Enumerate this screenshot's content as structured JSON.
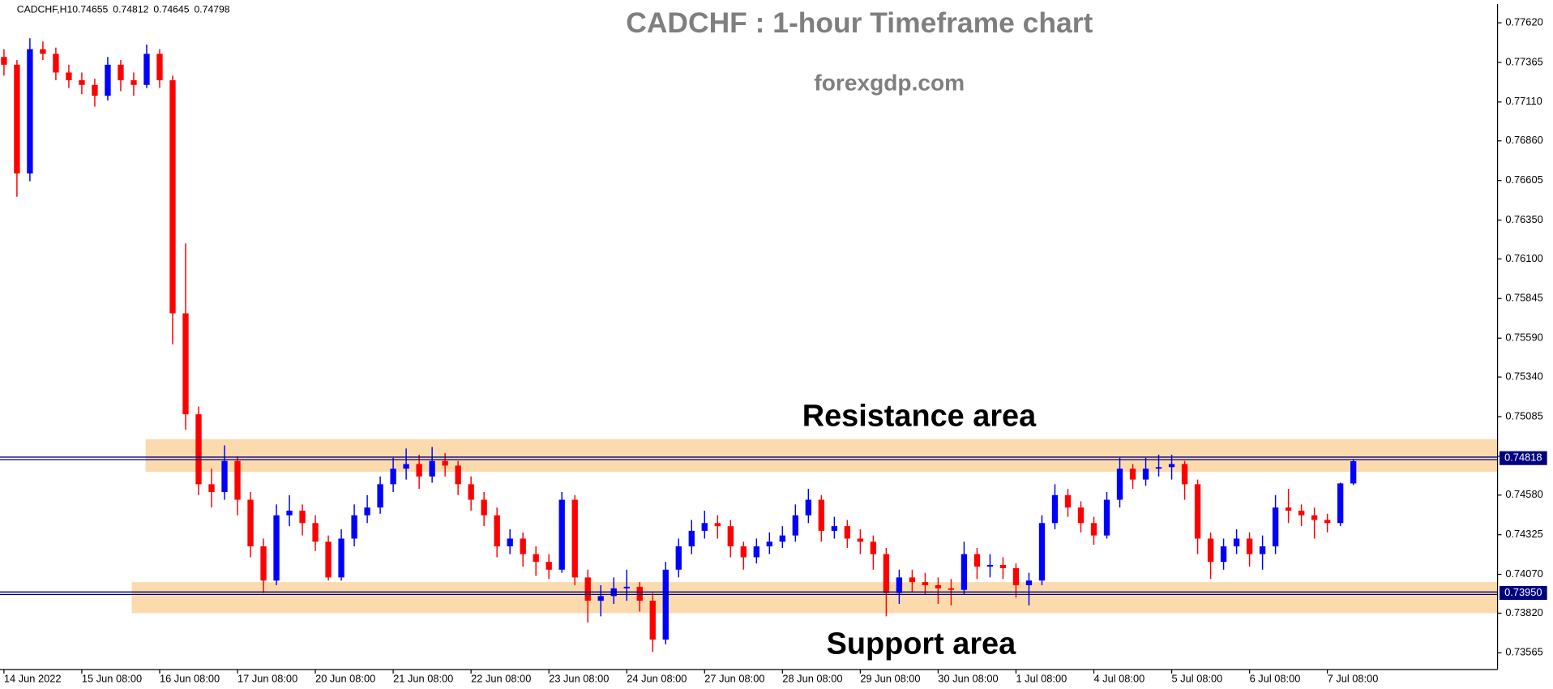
{
  "chart_data": {
    "type": "candlestick",
    "symbol": "CADCHF,H1",
    "title": "CADCHF : 1-hour Timeframe chart",
    "subtitle": "forexgdp.com",
    "annotations": [
      "Resistance area",
      "Support area"
    ],
    "up_color": "#0000ff",
    "down_color": "#ff0000",
    "line_color": "#000080",
    "zone_color": "#fbd7a4",
    "ylim": [
      0.73457,
      0.77741
    ],
    "yticks": [
      {
        "value": 0.7762,
        "label": "0.77620"
      },
      0.77365,
      {
        "value": 0.7711,
        "label": "0.77110"
      },
      {
        "value": 0.7686,
        "label": "0.76860"
      },
      0.76605,
      {
        "value": 0.7635,
        "label": "0.76350"
      },
      {
        "value": 0.761,
        "label": "0.76100"
      },
      0.75845,
      {
        "value": 0.7559,
        "label": "0.75590"
      },
      {
        "value": 0.7534,
        "label": "0.75340"
      },
      0.75085,
      {
        "value": 0.7483,
        "label": "0.74830"
      },
      {
        "value": 0.7458,
        "label": "0.74580"
      },
      0.74325,
      {
        "value": 0.7407,
        "label": "0.74070"
      },
      {
        "value": 0.7382,
        "label": "0.73820"
      },
      0.73565
    ],
    "hlines": [
      0.74818,
      {
        "value": 0.7395,
        "label": "0.73950"
      }
    ],
    "zones": [
      [
        0.7473,
        0.7494
      ],
      [
        0.7382,
        0.7402
      ]
    ],
    "categories": [
      "14 Jun 2022",
      null,
      null,
      null,
      null,
      null,
      "15 Jun 08:00",
      null,
      null,
      null,
      null,
      null,
      "16 Jun 08:00",
      null,
      null,
      null,
      null,
      null,
      "17 Jun 08:00",
      null,
      null,
      null,
      null,
      null,
      "20 Jun 08:00",
      null,
      null,
      null,
      null,
      null,
      "21 Jun 08:00",
      null,
      null,
      null,
      null,
      null,
      "22 Jun 08:00",
      null,
      null,
      null,
      null,
      null,
      "23 Jun 08:00",
      null,
      null,
      null,
      null,
      null,
      "24 Jun 08:00",
      null,
      null,
      null,
      null,
      null,
      "27 Jun 08:00",
      null,
      null,
      null,
      null,
      null,
      "28 Jun 08:00",
      null,
      null,
      null,
      null,
      null,
      "29 Jun 08:00",
      null,
      null,
      null,
      null,
      null,
      "30 Jun 08:00",
      null,
      null,
      null,
      null,
      null,
      "1 Jul 08:00",
      null,
      null,
      null,
      null,
      null,
      "4 Jul 08:00",
      null,
      null,
      null,
      null,
      null,
      "5 Jul 08:00",
      null,
      null,
      null,
      null,
      null,
      "6 Jul 08:00",
      null,
      null,
      null,
      null,
      null,
      "7 Jul 08:00",
      null,
      null
    ],
    "candles": [
      [
        0.774,
        0.7745,
        0.7728,
        0.7735
      ],
      [
        0.7735,
        0.7738,
        0.765,
        0.7665
      ],
      [
        0.7665,
        0.7752,
        0.766,
        0.7745
      ],
      [
        0.7745,
        0.775,
        0.7738,
        0.7742
      ],
      [
        0.7742,
        0.7746,
        0.7725,
        0.773
      ],
      [
        0.773,
        0.7735,
        0.772,
        0.7725
      ],
      [
        0.7725,
        0.773,
        0.7716,
        0.7722
      ],
      [
        0.7722,
        0.7726,
        0.7708,
        0.7715
      ],
      [
        0.7715,
        0.774,
        0.7712,
        0.7735
      ],
      [
        0.7735,
        0.7738,
        0.7718,
        0.7725
      ],
      [
        0.7725,
        0.773,
        0.7715,
        0.7722
      ],
      [
        0.7722,
        0.7748,
        0.772,
        0.7742
      ],
      [
        0.7742,
        0.7745,
        0.772,
        0.7725
      ],
      [
        0.7725,
        0.7728,
        0.7555,
        0.7575
      ],
      [
        0.7575,
        0.762,
        0.75,
        0.751
      ],
      [
        0.751,
        0.7515,
        0.7458,
        0.7465
      ],
      [
        0.7465,
        0.7475,
        0.745,
        0.746
      ],
      [
        0.746,
        0.749,
        0.7455,
        0.748
      ],
      [
        0.748,
        0.7483,
        0.7445,
        0.7455
      ],
      [
        0.7455,
        0.746,
        0.7418,
        0.7425
      ],
      [
        0.7425,
        0.743,
        0.7395,
        0.7403
      ],
      [
        0.7403,
        0.7452,
        0.74,
        0.7445
      ],
      [
        0.7445,
        0.7458,
        0.7438,
        0.7448
      ],
      [
        0.7448,
        0.7452,
        0.7432,
        0.744
      ],
      [
        0.744,
        0.7445,
        0.7422,
        0.7428
      ],
      [
        0.7428,
        0.7432,
        0.7403,
        0.7405
      ],
      [
        0.7405,
        0.7436,
        0.7403,
        0.743
      ],
      [
        0.743,
        0.7452,
        0.7425,
        0.7445
      ],
      [
        0.7445,
        0.7458,
        0.744,
        0.745
      ],
      [
        0.745,
        0.747,
        0.7446,
        0.7465
      ],
      [
        0.7465,
        0.7482,
        0.746,
        0.7475
      ],
      [
        0.7475,
        0.7488,
        0.7468,
        0.7478
      ],
      [
        0.7478,
        0.7484,
        0.7462,
        0.747
      ],
      [
        0.747,
        0.7489,
        0.7466,
        0.748
      ],
      [
        0.748,
        0.7485,
        0.747,
        0.7477
      ],
      [
        0.7477,
        0.748,
        0.7458,
        0.7465
      ],
      [
        0.7465,
        0.747,
        0.7448,
        0.7455
      ],
      [
        0.7455,
        0.746,
        0.7438,
        0.7445
      ],
      [
        0.7445,
        0.745,
        0.7418,
        0.7425
      ],
      [
        0.7425,
        0.7436,
        0.742,
        0.743
      ],
      [
        0.743,
        0.7434,
        0.7412,
        0.742
      ],
      [
        0.742,
        0.7425,
        0.7406,
        0.7415
      ],
      [
        0.7415,
        0.742,
        0.7404,
        0.741
      ],
      [
        0.741,
        0.746,
        0.7408,
        0.7455
      ],
      [
        0.7455,
        0.7458,
        0.74,
        0.7405
      ],
      [
        0.7405,
        0.741,
        0.7376,
        0.739
      ],
      [
        0.739,
        0.74,
        0.738,
        0.7393
      ],
      [
        0.7393,
        0.7405,
        0.7388,
        0.7398
      ],
      [
        0.7398,
        0.741,
        0.739,
        0.7399
      ],
      [
        0.7399,
        0.7402,
        0.7383,
        0.739
      ],
      [
        0.739,
        0.7395,
        0.7357,
        0.7365
      ],
      [
        0.7365,
        0.7415,
        0.7362,
        0.741
      ],
      [
        0.741,
        0.743,
        0.7405,
        0.7425
      ],
      [
        0.7425,
        0.7442,
        0.742,
        0.7435
      ],
      [
        0.7435,
        0.7448,
        0.743,
        0.744
      ],
      [
        0.744,
        0.7445,
        0.743,
        0.7438
      ],
      [
        0.7438,
        0.7442,
        0.7418,
        0.7425
      ],
      [
        0.7425,
        0.7428,
        0.741,
        0.7418
      ],
      [
        0.7418,
        0.743,
        0.7414,
        0.7425
      ],
      [
        0.7425,
        0.7434,
        0.742,
        0.7428
      ],
      [
        0.7428,
        0.7438,
        0.7424,
        0.7432
      ],
      [
        0.7432,
        0.7452,
        0.7428,
        0.7445
      ],
      [
        0.7445,
        0.7462,
        0.744,
        0.7455
      ],
      [
        0.7455,
        0.7458,
        0.7428,
        0.7435
      ],
      [
        0.7435,
        0.7444,
        0.743,
        0.7438
      ],
      [
        0.7438,
        0.7442,
        0.7424,
        0.743
      ],
      [
        0.743,
        0.7436,
        0.742,
        0.7428
      ],
      [
        0.7428,
        0.7432,
        0.741,
        0.742
      ],
      [
        0.742,
        0.7424,
        0.738,
        0.7395
      ],
      [
        0.7395,
        0.741,
        0.7388,
        0.7405
      ],
      [
        0.7405,
        0.741,
        0.7396,
        0.7402
      ],
      [
        0.7402,
        0.7408,
        0.7394,
        0.74
      ],
      [
        0.74,
        0.7405,
        0.7388,
        0.7398
      ],
      [
        0.7398,
        0.7404,
        0.7387,
        0.7397
      ],
      [
        0.7397,
        0.7428,
        0.7394,
        0.742
      ],
      [
        0.742,
        0.7424,
        0.7404,
        0.7412
      ],
      [
        0.7412,
        0.742,
        0.7405,
        0.7413
      ],
      [
        0.7413,
        0.7418,
        0.7404,
        0.7411
      ],
      [
        0.7411,
        0.7414,
        0.7392,
        0.74
      ],
      [
        0.74,
        0.7408,
        0.7387,
        0.7403
      ],
      [
        0.7403,
        0.7445,
        0.74,
        0.744
      ],
      [
        0.744,
        0.7465,
        0.7436,
        0.7458
      ],
      [
        0.7458,
        0.7462,
        0.7444,
        0.745
      ],
      [
        0.745,
        0.7454,
        0.7434,
        0.744
      ],
      [
        0.744,
        0.7444,
        0.7426,
        0.7432
      ],
      [
        0.7432,
        0.746,
        0.743,
        0.7455
      ],
      [
        0.7455,
        0.7482,
        0.745,
        0.7475
      ],
      [
        0.7475,
        0.7478,
        0.7462,
        0.7468
      ],
      [
        0.7468,
        0.7482,
        0.7464,
        0.7475
      ],
      [
        0.7475,
        0.7484,
        0.747,
        0.7476
      ],
      [
        0.7476,
        0.7484,
        0.7468,
        0.7478
      ],
      [
        0.7478,
        0.748,
        0.7455,
        0.7465
      ],
      [
        0.7465,
        0.7468,
        0.742,
        0.743
      ],
      [
        0.743,
        0.7434,
        0.7404,
        0.7415
      ],
      [
        0.7415,
        0.743,
        0.741,
        0.7425
      ],
      [
        0.7425,
        0.7436,
        0.742,
        0.743
      ],
      [
        0.743,
        0.7434,
        0.7412,
        0.742
      ],
      [
        0.742,
        0.7432,
        0.741,
        0.7425
      ],
      [
        0.7425,
        0.7458,
        0.742,
        0.745
      ],
      [
        0.745,
        0.7462,
        0.744,
        0.7448
      ],
      [
        0.7448,
        0.7452,
        0.7438,
        0.7445
      ],
      [
        0.7445,
        0.745,
        0.743,
        0.7442
      ],
      [
        0.7442,
        0.7446,
        0.7434,
        0.744
      ],
      [
        0.744,
        0.7466,
        0.7438,
        0.74655
      ],
      [
        0.74655,
        0.74812,
        0.74645,
        0.74798
      ]
    ]
  }
}
